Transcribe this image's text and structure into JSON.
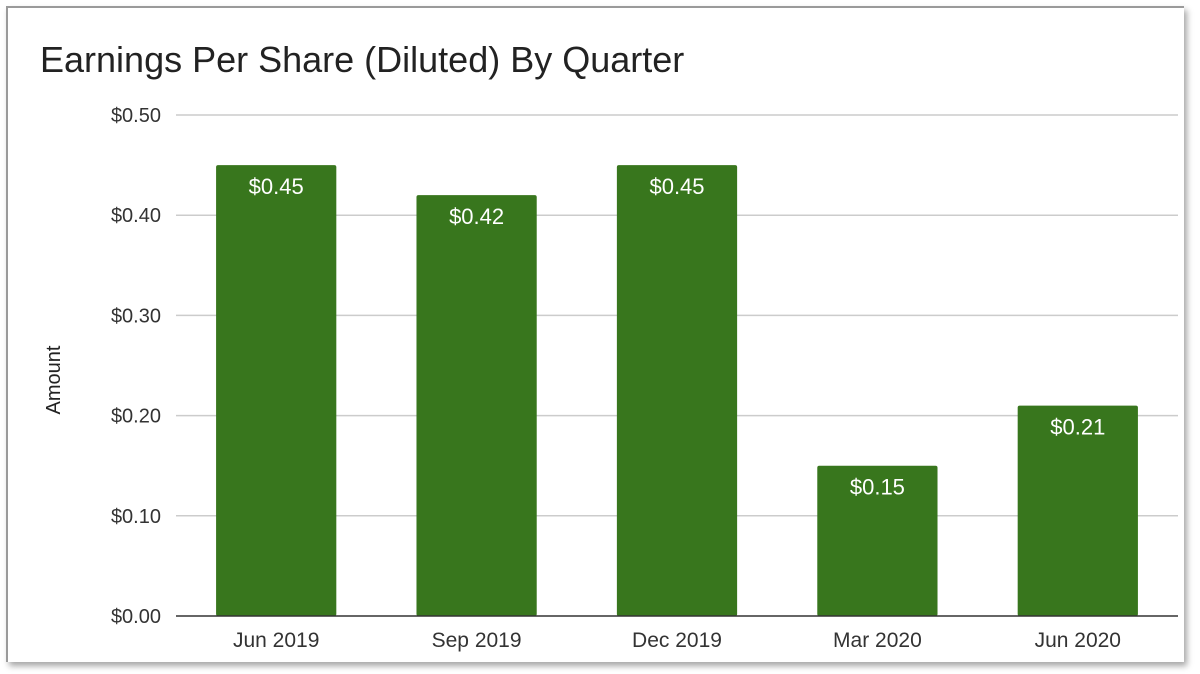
{
  "chart_data": {
    "type": "bar",
    "title": "Earnings Per Share (Diluted) By Quarter",
    "xlabel": "",
    "ylabel": "Amount",
    "categories": [
      "Jun 2019",
      "Sep 2019",
      "Dec 2019",
      "Mar 2020",
      "Jun 2020"
    ],
    "values": [
      0.45,
      0.42,
      0.45,
      0.15,
      0.21
    ],
    "data_labels": [
      "$0.45",
      "$0.42",
      "$0.45",
      "$0.15",
      "$0.21"
    ],
    "ylim": [
      0,
      0.5
    ],
    "yticks": [
      0,
      0.1,
      0.2,
      0.3,
      0.4,
      0.5
    ],
    "ytick_labels": [
      "$0.00",
      "$0.10",
      "$0.20",
      "$0.30",
      "$0.40",
      "$0.50"
    ],
    "grid": true,
    "legend": "none",
    "bar_color": "#38761d",
    "grid_color": "#cccccc",
    "axis_color": "#333333"
  }
}
